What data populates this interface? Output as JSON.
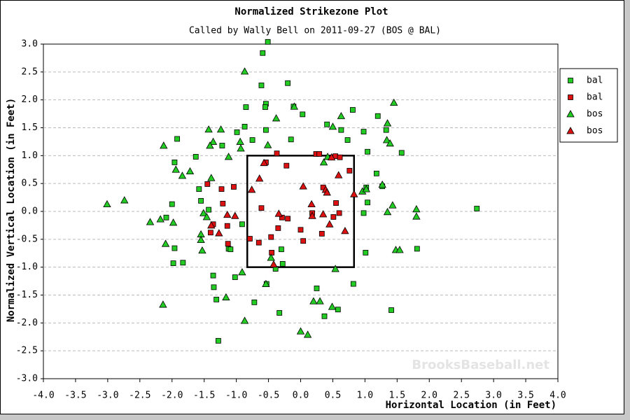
{
  "chart_data": {
    "type": "scatter",
    "title": "Normalized Strikezone Plot",
    "subtitle": "Called by Wally Bell on 2011-09-27 (BOS @ BAL)",
    "x_label": "Horizontal Location (in Feet)",
    "y_label": "Normalized Vertical Location (in Feet)",
    "watermark": "BrooksBaseball.net",
    "xlim": [
      -4,
      4
    ],
    "ylim": [
      -3,
      3
    ],
    "xticks": [
      {
        "value": -4,
        "label": "-4.0"
      },
      {
        "value": -3.5,
        "label": "-3.5"
      },
      {
        "value": -3,
        "label": "-3.0"
      },
      {
        "value": -2.5,
        "label": "-2.5"
      },
      {
        "value": -2,
        "label": "-2.0"
      },
      {
        "value": -1.5,
        "label": "-1.5"
      },
      {
        "value": -1,
        "label": "-1.0"
      },
      {
        "value": -0.5,
        "label": "-0.5"
      },
      {
        "value": 0,
        "label": "0.0"
      },
      {
        "value": 0.5,
        "label": "0.5"
      },
      {
        "value": 1,
        "label": "1.0"
      },
      {
        "value": 1.5,
        "label": "1.5"
      },
      {
        "value": 2,
        "label": "2.0"
      },
      {
        "value": 2.5,
        "label": "2.5"
      },
      {
        "value": 3,
        "label": "3.0"
      },
      {
        "value": 3.5,
        "label": "3.5"
      },
      {
        "value": 4,
        "label": "4.0"
      }
    ],
    "yticks": [
      {
        "value": -3,
        "label": "-3.0"
      },
      {
        "value": -2.5,
        "label": "-2.5"
      },
      {
        "value": -2,
        "label": "-2.0"
      },
      {
        "value": -1.5,
        "label": "-1.5"
      },
      {
        "value": -1,
        "label": "-1.0"
      },
      {
        "value": -0.5,
        "label": "-0.5"
      },
      {
        "value": 0,
        "label": "0.0"
      },
      {
        "value": 0.5,
        "label": "0.5"
      },
      {
        "value": 1,
        "label": "1.0"
      },
      {
        "value": 1.5,
        "label": "1.5"
      },
      {
        "value": 2,
        "label": "2.0"
      },
      {
        "value": 2.5,
        "label": "2.5"
      },
      {
        "value": 3,
        "label": "3.0"
      }
    ],
    "grid": true,
    "legend": "top-right",
    "zone": {
      "x": [
        -0.83,
        0.83
      ],
      "y": [
        -1,
        1
      ]
    },
    "series": [
      {
        "name": "bal",
        "color": "#22cc22",
        "marker": "square",
        "x": [
          -0.51,
          -0.59,
          -0.61,
          -0.2,
          -0.54,
          -0.55,
          -0.85,
          -0.11,
          0.03,
          0.81,
          1.2,
          -1.92,
          -0.87,
          -0.99,
          -0.54,
          0.41,
          0.63,
          0.98,
          1.33,
          -0.15,
          -0.75,
          0.73,
          1.04,
          1.57,
          -1.22,
          -1.63,
          -1.96,
          1.18,
          1.27,
          1.02,
          1.04,
          0.98,
          -2.0,
          -2.09,
          -1.43,
          -1.58,
          -1.55,
          -1.96,
          -1.98,
          -1.83,
          -1.12,
          -1.09,
          -0.91,
          -1.02,
          -1.36,
          -1.35,
          -1.31,
          -1.28,
          -0.72,
          -0.53,
          -0.28,
          -0.3,
          -0.39,
          -0.33,
          0.25,
          0.37,
          0.58,
          0.82,
          1.01,
          1.41,
          1.81,
          2.74
        ],
        "y": [
          3.04,
          2.84,
          2.26,
          2.3,
          1.93,
          1.87,
          1.87,
          1.88,
          1.74,
          1.82,
          1.71,
          1.3,
          1.52,
          1.42,
          1.46,
          1.56,
          1.46,
          1.43,
          1.46,
          1.29,
          1.28,
          1.28,
          1.07,
          1.05,
          1.18,
          0.98,
          0.88,
          0.68,
          0.45,
          0.43,
          0.16,
          -0.03,
          0.13,
          -0.11,
          0.03,
          0.4,
          0.19,
          -0.66,
          -0.93,
          -0.92,
          -0.67,
          -0.68,
          -0.23,
          -1.18,
          -1.15,
          -1.36,
          -1.58,
          -2.32,
          -1.63,
          -1.3,
          -0.94,
          -0.68,
          -1.03,
          -1.82,
          -1.38,
          -1.88,
          -1.76,
          -1.3,
          -0.74,
          -1.77,
          -0.67,
          0.05
        ]
      },
      {
        "name": "bal",
        "color": "#dd1111",
        "marker": "square",
        "x": [
          -0.37,
          -0.54,
          -0.22,
          0.24,
          0.29,
          0.54,
          -1.45,
          -1.23,
          -1.04,
          -1.21,
          -1.36,
          -1.14,
          -1.4,
          -1.13,
          -0.61,
          -0.35,
          -0.46,
          -0.79,
          -0.65,
          -0.29,
          -0.45,
          -0.2,
          0.0,
          0.04,
          0.18,
          0.35,
          0.33,
          0.6,
          0.55,
          0.76,
          0.61,
          0.51
        ],
        "y": [
          1.04,
          0.88,
          0.82,
          1.03,
          1.03,
          0.99,
          0.49,
          0.4,
          0.44,
          0.14,
          -0.23,
          -0.26,
          -0.38,
          -0.58,
          0.06,
          -0.3,
          -0.46,
          -0.49,
          -0.56,
          -0.11,
          -0.74,
          -0.13,
          -0.33,
          -0.53,
          -0.03,
          0.43,
          -0.4,
          -0.03,
          0.15,
          0.73,
          0.97,
          -0.1
        ]
      },
      {
        "name": "bos",
        "color": "#22cc22",
        "marker": "triangle",
        "x": [
          -0.87,
          -0.1,
          0.63,
          0.5,
          1.45,
          -0.38,
          -1.43,
          -1.24,
          -1.36,
          -1.41,
          -0.94,
          -0.93,
          -1.12,
          -0.51,
          -2.13,
          -1.94,
          -1.72,
          -1.84,
          -1.39,
          1.35,
          1.34,
          1.39,
          1.27,
          0.36,
          0.42,
          -3.01,
          -2.74,
          -2.34,
          -2.18,
          -1.98,
          -2.1,
          -2.14,
          -1.51,
          -1.46,
          -1.55,
          -1.55,
          -1.53,
          0.96,
          1.02,
          1.43,
          1.35,
          1.8,
          1.8,
          1.48,
          1.54,
          -0.91,
          -0.46,
          -0.54,
          -1.16,
          -0.87,
          0.2,
          0.3,
          0.49,
          0.54,
          0.0,
          0.11
        ],
        "y": [
          2.51,
          1.88,
          1.71,
          1.52,
          1.95,
          1.67,
          1.47,
          1.47,
          1.25,
          1.18,
          1.25,
          1.13,
          0.98,
          1.19,
          1.18,
          0.75,
          0.72,
          0.64,
          0.6,
          1.58,
          1.28,
          1.22,
          0.48,
          0.88,
          0.98,
          0.13,
          0.2,
          -0.19,
          -0.14,
          -0.2,
          -0.58,
          -1.67,
          -0.03,
          -0.1,
          -0.41,
          -0.51,
          -0.7,
          0.36,
          0.4,
          0.11,
          -0.01,
          0.04,
          -0.09,
          -0.69,
          -0.69,
          -1.09,
          -0.83,
          -1.3,
          -1.54,
          -1.96,
          -1.61,
          -1.61,
          -1.71,
          -1.03,
          -2.15,
          -2.21
        ]
      },
      {
        "name": "bos",
        "color": "#dd1111",
        "marker": "triangle",
        "x": [
          -0.57,
          -0.64,
          -0.76,
          0.04,
          0.39,
          0.41,
          0.59,
          0.83,
          0.48,
          -0.34,
          0.17,
          0.18,
          0.35,
          0.45,
          0.69,
          -0.42,
          -1.27,
          -1.39,
          -1.14,
          -1.02
        ],
        "y": [
          0.87,
          0.59,
          0.39,
          0.45,
          0.39,
          0.34,
          0.65,
          0.31,
          0.97,
          -0.04,
          0.13,
          -0.08,
          -0.05,
          -0.23,
          -0.35,
          -0.95,
          -0.39,
          -0.25,
          -0.06,
          -0.08
        ]
      }
    ]
  }
}
